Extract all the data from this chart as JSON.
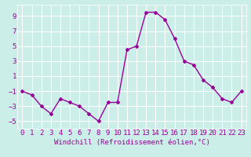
{
  "x": [
    0,
    1,
    2,
    3,
    4,
    5,
    6,
    7,
    8,
    9,
    10,
    11,
    12,
    13,
    14,
    15,
    16,
    17,
    18,
    19,
    20,
    21,
    22,
    23
  ],
  "y": [
    -1,
    -1.5,
    -3,
    -4,
    -2,
    -2.5,
    -3,
    -4,
    -5,
    -2.5,
    -2.5,
    4.5,
    5,
    9.5,
    9.5,
    8.5,
    6,
    3,
    2.5,
    0.5,
    -0.5,
    -2,
    -2.5,
    -1
  ],
  "line_color": "#990099",
  "marker": "D",
  "marker_size": 2,
  "linewidth": 1.0,
  "xlabel": "Windchill (Refroidissement éolien,°C)",
  "xlim": [
    -0.5,
    23.5
  ],
  "ylim": [
    -6,
    10.5
  ],
  "yticks": [
    -5,
    -3,
    -1,
    1,
    3,
    5,
    7,
    9
  ],
  "xticks": [
    0,
    1,
    2,
    3,
    4,
    5,
    6,
    7,
    8,
    9,
    10,
    11,
    12,
    13,
    14,
    15,
    16,
    17,
    18,
    19,
    20,
    21,
    22,
    23
  ],
  "bg_color": "#cceee8",
  "grid_color": "#ffffff",
  "line_label_color": "#990099",
  "xlabel_fontsize": 6.5,
  "tick_fontsize": 6.5
}
